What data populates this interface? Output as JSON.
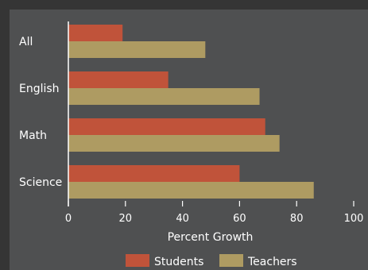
{
  "chart_data": {
    "type": "bar",
    "orientation": "horizontal",
    "categories": [
      "All",
      "English",
      "Math",
      "Science"
    ],
    "series": [
      {
        "name": "Students",
        "color": "#c0533a",
        "values": [
          19,
          35,
          69,
          60
        ]
      },
      {
        "name": "Teachers",
        "color": "#ae9b62",
        "values": [
          48,
          67,
          74,
          86
        ]
      }
    ],
    "xlabel": "Percent Growth",
    "ylabel": "",
    "xlim": [
      0,
      100
    ],
    "xticks": [
      "0",
      "20",
      "40",
      "60",
      "80",
      "100"
    ],
    "grid": false,
    "legend": "bottom"
  }
}
